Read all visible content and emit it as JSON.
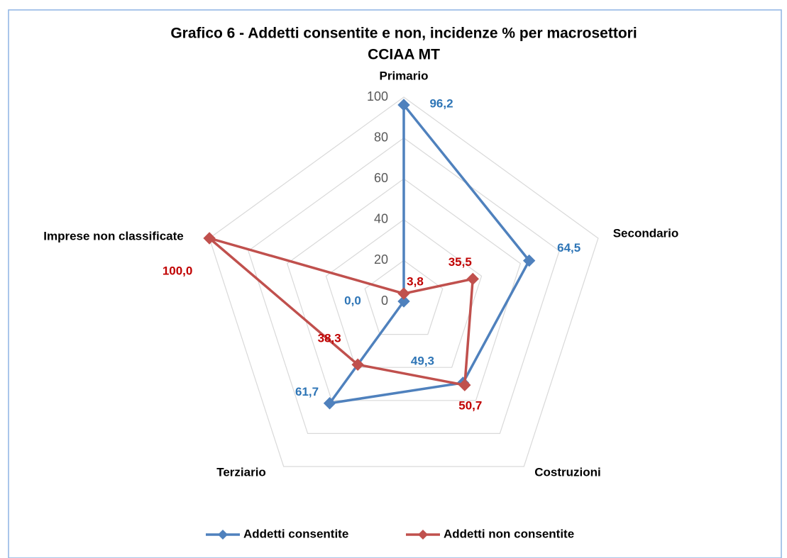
{
  "chart_data": {
    "type": "radar",
    "title": [
      "Grafico 6 - Addetti consentite e non, incidenze % per macrosettori",
      "CCIAA MT"
    ],
    "categories": [
      "Primario",
      "Secondario",
      "Costruzioni",
      "Terziario",
      "Imprese non classificate"
    ],
    "series": [
      {
        "name": "Addetti consentite",
        "color": "#4f81bd",
        "values": [
          96.2,
          64.5,
          49.3,
          61.7,
          0.0
        ],
        "value_labels": [
          "96,2",
          "64,5",
          "49,3",
          "61,7",
          "0,0"
        ],
        "label_color": "#2e75b6"
      },
      {
        "name": "Addetti non consentite",
        "color": "#c0504d",
        "values": [
          3.8,
          35.5,
          50.7,
          38.3,
          100.0
        ],
        "value_labels": [
          "3,8",
          "35,5",
          "50,7",
          "38,3",
          "100,0"
        ],
        "label_color": "#c00000"
      }
    ],
    "ylim": [
      0,
      100
    ],
    "yticks": [
      0,
      20,
      40,
      60,
      80,
      100
    ],
    "grid": true,
    "legend": "bottom"
  }
}
